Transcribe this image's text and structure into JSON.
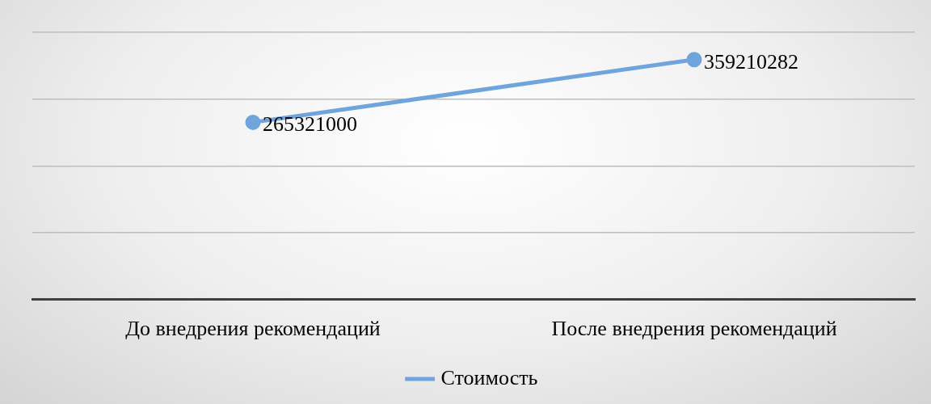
{
  "chart_data": {
    "type": "line",
    "categories": [
      "До внедрения рекомендаций",
      "После внедрения рекомендаций"
    ],
    "series": [
      {
        "name": "Стоимость",
        "color": "#6fa5dc",
        "values": [
          265321000,
          359210282
        ]
      }
    ],
    "ylim": [
      0,
      400000000
    ],
    "yticks": [
      {
        "value": 0,
        "label": null
      },
      {
        "value": 100000000,
        "label": null
      },
      {
        "value": 200000000,
        "label": null
      },
      {
        "value": 300000000,
        "label": null
      },
      {
        "value": 400000000,
        "label": null
      }
    ],
    "tick_labels": "x",
    "grid": "y",
    "legend": "bottom",
    "marker": "circle",
    "line_style": "solid",
    "data_labels": true
  }
}
